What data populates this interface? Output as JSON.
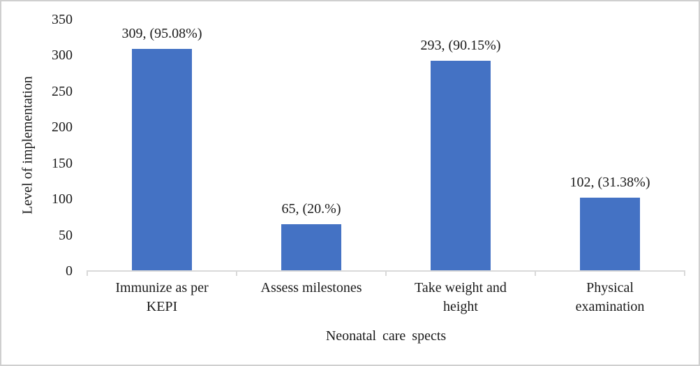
{
  "chart_data": {
    "type": "bar",
    "categories": [
      "Immunize as per\nKEPI",
      "Assess milestones",
      "Take weight and\nheight",
      "Physical\nexamination"
    ],
    "values": [
      309,
      65,
      293,
      102
    ],
    "data_labels": [
      "309, (95.08%)",
      "65, (20.%)",
      "293, (90.15%)",
      "102, (31.38%)"
    ],
    "title": "",
    "xlabel": "Neonatal care spects",
    "ylabel": "Level of implementation",
    "ylim": [
      0,
      350
    ],
    "yticks": [
      0,
      50,
      100,
      150,
      200,
      250,
      300,
      350
    ],
    "grid": false,
    "legend": "none",
    "bar_color": "#4472c4",
    "axis_line_color": "#d9d9d9",
    "text_color": "#1a1a1a"
  }
}
